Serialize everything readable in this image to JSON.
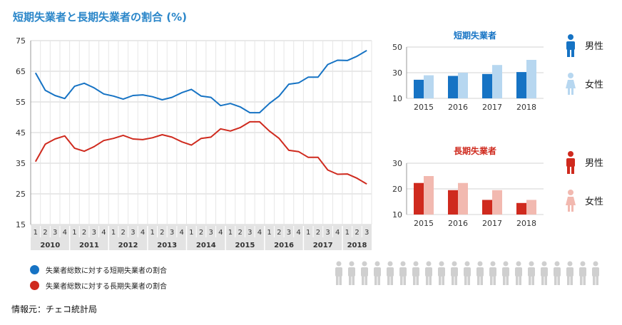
{
  "title": "短期失業者と長期失業者の割合 (%)",
  "colors": {
    "short_main": "#1673c4",
    "short_female": "#b7d7f0",
    "long_main": "#cf2a1e",
    "long_female": "#f2b9b0",
    "grid": "#d3d3d3",
    "axis_band": "#e3e3e3",
    "people_icon": "#cfcfcf"
  },
  "icons": {
    "male": "male-person-icon",
    "female": "female-person-icon",
    "crowd": "person-icon"
  },
  "legend": [
    {
      "label": "失業者総数に対する短期失業者の割合",
      "color": "#1673c4"
    },
    {
      "label": "失業者総数に対する長期失業者の割合",
      "color": "#cf2a1e"
    }
  ],
  "source": "情報元：チェコ統計局",
  "chart_data": [
    {
      "type": "line",
      "title": "",
      "ylim": [
        15,
        75
      ],
      "yticks": [
        15,
        25,
        35,
        45,
        55,
        65,
        75
      ],
      "grid": true,
      "quarter_labels": [
        "1",
        "2",
        "3",
        "4",
        "1",
        "2",
        "3",
        "4",
        "1",
        "2",
        "3",
        "4",
        "1",
        "2",
        "3",
        "4",
        "1",
        "2",
        "3",
        "4",
        "1",
        "2",
        "3",
        "4",
        "1",
        "2",
        "3",
        "4",
        "1",
        "2",
        "3",
        "4",
        "1",
        "2",
        "3"
      ],
      "year_labels": [
        "2010",
        "2011",
        "2012",
        "2013",
        "2014",
        "2015",
        "2016",
        "2017",
        "2018"
      ],
      "year_spans": [
        4,
        4,
        4,
        4,
        4,
        4,
        4,
        4,
        3
      ],
      "series": [
        {
          "name": "失業者総数に対する短期失業者の割合",
          "values": [
            64.5,
            58.8,
            57.1,
            56.1,
            60.1,
            61.1,
            59.6,
            57.6,
            56.9,
            55.9,
            57.1,
            57.3,
            56.7,
            55.7,
            56.5,
            58.0,
            59.1,
            56.9,
            56.5,
            53.8,
            54.5,
            53.4,
            51.5,
            51.5,
            54.5,
            56.9,
            60.8,
            61.2,
            63.1,
            63.1,
            67.2,
            68.6,
            68.5,
            69.9,
            71.8
          ]
        },
        {
          "name": "失業者総数に対する長期失業者の割合",
          "values": [
            35.5,
            41.2,
            42.9,
            43.9,
            39.9,
            38.9,
            40.4,
            42.4,
            43.1,
            44.1,
            42.9,
            42.7,
            43.3,
            44.3,
            43.5,
            42.0,
            40.9,
            43.1,
            43.5,
            46.2,
            45.5,
            46.6,
            48.5,
            48.5,
            45.5,
            43.1,
            39.2,
            38.8,
            36.9,
            36.9,
            32.8,
            31.4,
            31.5,
            30.1,
            28.2
          ]
        }
      ]
    },
    {
      "type": "bar",
      "title": "短期失業者",
      "categories": [
        "2015",
        "2016",
        "2017",
        "2018"
      ],
      "ylim": [
        10,
        50
      ],
      "yticks": [
        10,
        30,
        50
      ],
      "series": [
        {
          "name": "男性",
          "values": [
            24.5,
            27.5,
            29.0,
            30.5
          ]
        },
        {
          "name": "女性",
          "values": [
            28.0,
            30.0,
            36.0,
            40.0
          ]
        }
      ]
    },
    {
      "type": "bar",
      "title": "長期失業者",
      "categories": [
        "2015",
        "2016",
        "2017",
        "2018"
      ],
      "ylim": [
        10,
        30
      ],
      "yticks": [
        10,
        20,
        30
      ],
      "series": [
        {
          "name": "男性",
          "values": [
            22.3,
            19.5,
            15.7,
            14.5
          ]
        },
        {
          "name": "女性",
          "values": [
            25.0,
            22.3,
            19.5,
            15.7
          ]
        }
      ]
    }
  ],
  "crowd_count": 21
}
